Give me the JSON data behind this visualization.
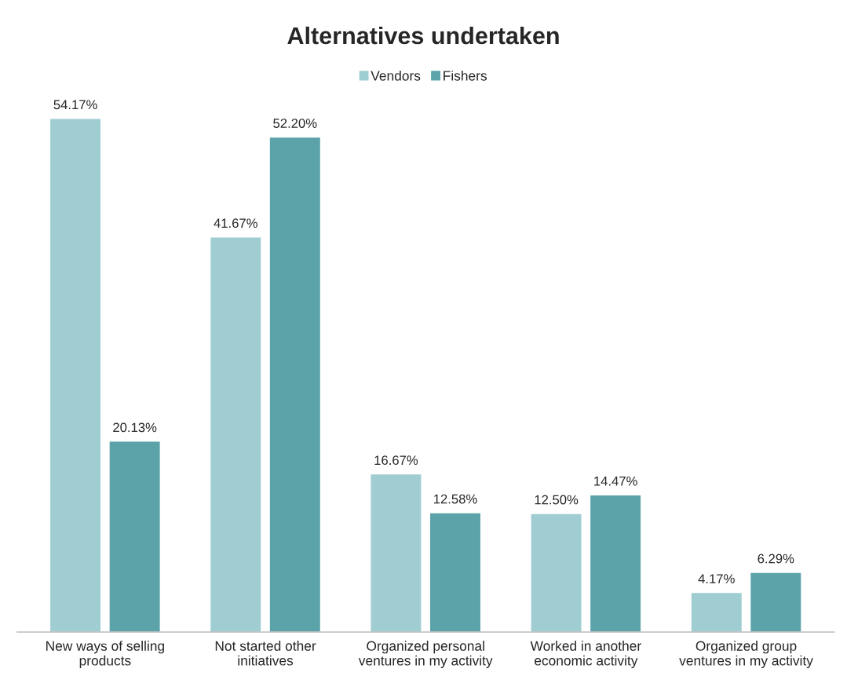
{
  "chart_data": {
    "type": "bar",
    "title": "Alternatives undertaken",
    "categories": [
      "New ways of selling\nproducts",
      "Not started other\ninitiatives",
      "Organized personal\nventures in my activity",
      "Worked in another\neconomic activity",
      "Organized group\nventures in my activity"
    ],
    "series": [
      {
        "name": "Vendors",
        "color": "#9fcdd2",
        "values": [
          54.17,
          41.67,
          16.67,
          12.5,
          4.17
        ],
        "value_labels": [
          "54.17%",
          "41.67%",
          "16.67%",
          "12.50%",
          "4.17%"
        ]
      },
      {
        "name": "Fishers",
        "color": "#5ba3a9",
        "values": [
          20.13,
          52.2,
          12.58,
          14.47,
          6.29
        ],
        "value_labels": [
          "20.13%",
          "52.20%",
          "12.58%",
          "14.47%",
          "6.29%"
        ]
      }
    ],
    "legend": "top",
    "grid": false
  }
}
